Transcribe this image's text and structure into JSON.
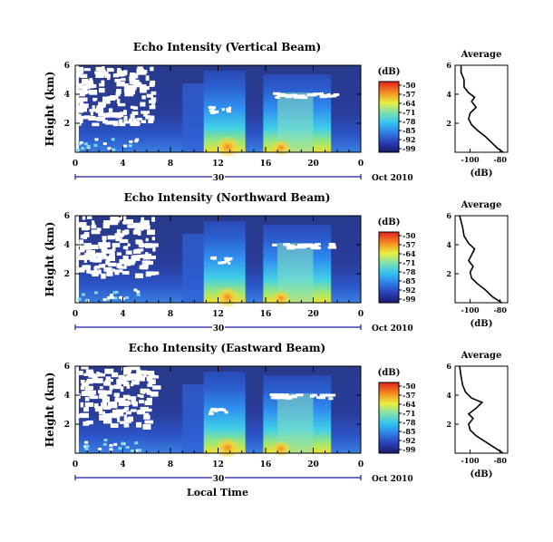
{
  "chart_data": [
    {
      "type": "heatmap",
      "title": "Echo Intensity (Vertical Beam)",
      "ylabel": "Height (km)",
      "yticks": [
        "2",
        "4",
        "6"
      ],
      "ylim": [
        0,
        6
      ],
      "xticks": [
        "0",
        "4",
        "8",
        "12",
        "16",
        "20",
        "0"
      ],
      "xlim": [
        0,
        24
      ],
      "date_label": "30",
      "month_label": "Oct 2010",
      "colorbar": {
        "unit": "(dB)",
        "ticks": [
          "-50",
          "-57",
          "-64",
          "-71",
          "-78",
          "-85",
          "-92",
          "-99"
        ]
      },
      "profile": {
        "title": "Average",
        "xlabel": "(dB)",
        "xticks": [
          "-100",
          "-80"
        ],
        "xlim": [
          -110,
          -75
        ],
        "yticks": [
          "2",
          "4",
          "6"
        ],
        "ylim": [
          0,
          6
        ],
        "points": [
          [
            -78,
            0.0
          ],
          [
            -82,
            0.3
          ],
          [
            -86,
            0.7
          ],
          [
            -90,
            1.1
          ],
          [
            -95,
            1.5
          ],
          [
            -99,
            1.9
          ],
          [
            -101,
            2.3
          ],
          [
            -100,
            2.7
          ],
          [
            -96,
            3.1
          ],
          [
            -99,
            3.5
          ],
          [
            -97,
            3.8
          ],
          [
            -101,
            4.1
          ],
          [
            -104,
            4.5
          ],
          [
            -104,
            5.0
          ],
          [
            -106,
            5.5
          ],
          [
            -106,
            6.0
          ]
        ]
      }
    },
    {
      "type": "heatmap",
      "title": "Echo Intensity (Northward Beam)",
      "ylabel": "Height (km)",
      "yticks": [
        "2",
        "4",
        "6"
      ],
      "ylim": [
        0,
        6
      ],
      "xticks": [
        "0",
        "4",
        "8",
        "12",
        "16",
        "20",
        "0"
      ],
      "xlim": [
        0,
        24
      ],
      "date_label": "30",
      "month_label": "Oct 2010",
      "colorbar": {
        "unit": "(dB)",
        "ticks": [
          "-50",
          "-57",
          "-64",
          "-71",
          "-78",
          "-85",
          "-92",
          "-99"
        ]
      },
      "profile": {
        "title": "Average",
        "xlabel": "(dB)",
        "xticks": [
          "-100",
          "-80"
        ],
        "xlim": [
          -110,
          -75
        ],
        "yticks": [
          "2",
          "4",
          "6"
        ],
        "ylim": [
          0,
          6
        ],
        "points": [
          [
            -79,
            0.0
          ],
          [
            -85,
            0.4
          ],
          [
            -90,
            0.9
          ],
          [
            -95,
            1.3
          ],
          [
            -99,
            1.7
          ],
          [
            -100,
            2.1
          ],
          [
            -98,
            2.5
          ],
          [
            -101,
            2.9
          ],
          [
            -99,
            3.3
          ],
          [
            -97,
            3.7
          ],
          [
            -101,
            4.1
          ],
          [
            -104,
            4.6
          ],
          [
            -105,
            5.2
          ],
          [
            -107,
            6.0
          ]
        ]
      }
    },
    {
      "type": "heatmap",
      "title": "Echo Intensity (Eastward Beam)",
      "ylabel": "Height (km)",
      "yticks": [
        "2",
        "4",
        "6"
      ],
      "ylim": [
        0,
        6
      ],
      "xticks": [
        "0",
        "4",
        "8",
        "12",
        "16",
        "20",
        "0"
      ],
      "xlim": [
        0,
        24
      ],
      "date_label": "30",
      "month_label": "Oct 2010",
      "xlabel": "Local Time",
      "colorbar": {
        "unit": "(dB)",
        "ticks": [
          "-50",
          "-57",
          "-64",
          "-71",
          "-78",
          "-85",
          "-92",
          "-99"
        ]
      },
      "profile": {
        "title": "Average",
        "xlabel": "(dB)",
        "xticks": [
          "-100",
          "-80"
        ],
        "xlim": [
          -110,
          -75
        ],
        "yticks": [
          "2",
          "4",
          "6"
        ],
        "ylim": [
          0,
          6
        ],
        "points": [
          [
            -78,
            0.0
          ],
          [
            -84,
            0.4
          ],
          [
            -90,
            0.8
          ],
          [
            -96,
            1.2
          ],
          [
            -100,
            1.6
          ],
          [
            -101,
            2.0
          ],
          [
            -98,
            2.4
          ],
          [
            -101,
            2.7
          ],
          [
            -96,
            3.1
          ],
          [
            -92,
            3.5
          ],
          [
            -99,
            3.8
          ],
          [
            -103,
            4.2
          ],
          [
            -105,
            4.7
          ],
          [
            -106,
            5.3
          ],
          [
            -107,
            6.0
          ]
        ]
      }
    }
  ]
}
